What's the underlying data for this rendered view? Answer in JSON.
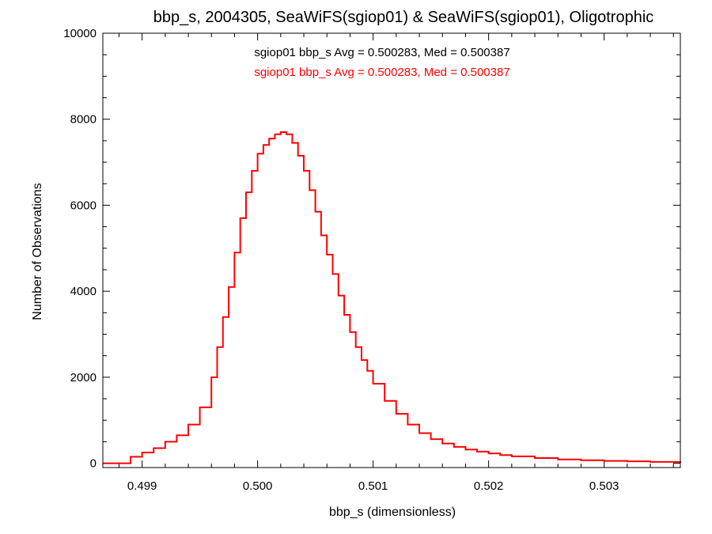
{
  "chart_data": {
    "type": "line",
    "style": "step-histogram",
    "title": "bbp_s, 2004305, SeaWiFS(sgiop01) & SeaWiFS(sgiop01), Oligotrophic",
    "xlabel": "bbp_s (dimensionless)",
    "ylabel": "Number of Observations",
    "xlim": [
      0.49866,
      0.50366
    ],
    "ylim": [
      -100,
      10000
    ],
    "x_ticks": [
      0.499,
      0.5,
      0.501,
      0.502,
      0.503
    ],
    "x_tick_labels": [
      "0.499",
      "0.500",
      "0.501",
      "0.502",
      "0.503"
    ],
    "y_ticks": [
      0,
      2000,
      4000,
      6000,
      8000,
      10000
    ],
    "y_tick_labels": [
      "0",
      "2000",
      "4000",
      "6000",
      "8000",
      "10000"
    ],
    "grid": false,
    "annotations": [
      {
        "text": "sgiop01 bbp_s Avg = 0.500283, Med = 0.500387",
        "color": "#000000"
      },
      {
        "text": "sgiop01 bbp_s Avg = 0.500283, Med = 0.500387",
        "color": "#ff0000"
      }
    ],
    "series": [
      {
        "color": "#ff0000",
        "x": [
          0.49866,
          0.4988,
          0.49886,
          0.4989,
          0.499,
          0.4991,
          0.4992,
          0.4993,
          0.4994,
          0.4995,
          0.4996,
          0.49965,
          0.4997,
          0.49975,
          0.4998,
          0.49985,
          0.4999,
          0.49995,
          0.5,
          0.50005,
          0.5001,
          0.50015,
          0.5002,
          0.50025,
          0.5003,
          0.50035,
          0.5004,
          0.50045,
          0.5005,
          0.50055,
          0.5006,
          0.50065,
          0.5007,
          0.50075,
          0.5008,
          0.50085,
          0.5009,
          0.50095,
          0.501,
          0.5011,
          0.5012,
          0.5013,
          0.5014,
          0.5015,
          0.5016,
          0.5017,
          0.5018,
          0.5019,
          0.502,
          0.5021,
          0.5022,
          0.5024,
          0.5026,
          0.5028,
          0.503,
          0.5032,
          0.5034,
          0.50366
        ],
        "y": [
          0,
          0,
          0,
          150,
          250,
          350,
          500,
          650,
          900,
          1300,
          2000,
          2700,
          3400,
          4100,
          4900,
          5700,
          6300,
          6800,
          7200,
          7400,
          7550,
          7650,
          7700,
          7650,
          7450,
          7150,
          6800,
          6350,
          5850,
          5300,
          4850,
          4400,
          3900,
          3450,
          3050,
          2700,
          2400,
          2150,
          1850,
          1450,
          1150,
          900,
          700,
          560,
          460,
          380,
          320,
          270,
          230,
          190,
          160,
          120,
          90,
          70,
          55,
          45,
          30,
          10
        ]
      }
    ]
  }
}
